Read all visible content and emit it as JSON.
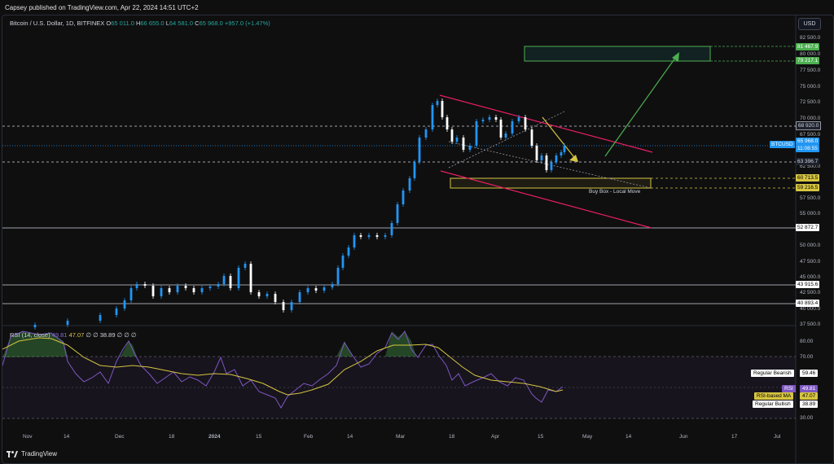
{
  "banner": {
    "text": "Capsey published on TradingView.com, Apr 22, 2024 14:51 UTC+2"
  },
  "header": {
    "symbol": "Bitcoin / U.S. Dollar, 1D, BITFINEX",
    "o_label": "O",
    "o_value": "65 011.0",
    "h_label": "H",
    "h_value": "66 655.0",
    "l_label": "L",
    "l_value": "64 581.0",
    "c_label": "C",
    "c_value": "65 968.0",
    "change": "+957.0 (+1.47%)",
    "currency": "USD"
  },
  "rsi_header": {
    "label": "RSI (14, close)",
    "rsi_value": "49.81",
    "ma_value": "47.07",
    "na1": "∅",
    "na2": "∅",
    "level": "38.89",
    "na3": "∅",
    "na4": "∅",
    "na5": "∅"
  },
  "price_axis": {
    "ticks": [
      "82 500.0",
      "80 000.0",
      "77 500.0",
      "75 000.0",
      "72 500.0",
      "70 000.0",
      "67 500.0",
      "62 500.0",
      "57 500.0",
      "55 000.0",
      "50 000.0",
      "47 500.0",
      "45 000.0",
      "42 500.0",
      "40 000.0",
      "37 500.0"
    ],
    "tags": {
      "t81467": "81 467.9",
      "t79217": "79 217.1",
      "t68920": "68 920.0",
      "btcusd": "BTCUSD",
      "price": "65 968.0",
      "countdown": "11:08:55",
      "t63396": "63 396.7",
      "t60713": "60 713.5",
      "t59216": "59 216.5",
      "t52872": "52 872.7",
      "t43915": "43 915.6",
      "t40893": "40 893.4"
    }
  },
  "rsi_axis": {
    "ticks": [
      "80.00",
      "70.00",
      "30.00"
    ],
    "tags": {
      "bearish_label": "Regular Bearish",
      "bearish_value": "59.46",
      "rsi_label": "RSI",
      "rsi_value": "49.81",
      "ma_label": "RSI-based MA",
      "ma_value": "47.07",
      "bullish_label": "Regular Bullish",
      "bullish_value": "38.89"
    }
  },
  "annotations": {
    "buy_box": "Buy Box - Local Move"
  },
  "time_axis": {
    "labels": [
      "Nov",
      "14",
      "Dec",
      "18",
      "2024",
      "15",
      "Feb",
      "14",
      "Mar",
      "18",
      "Apr",
      "15",
      "May",
      "14",
      "Jun",
      "17",
      "Jul"
    ]
  },
  "footer": {
    "brand": "TradingView"
  },
  "colors": {
    "up": "#2196f3",
    "down": "#ffffff",
    "green": "#26a69a",
    "rsi": "#7e57c2",
    "rsi_ma": "#d6c542",
    "pink": "#e91e63",
    "buy_box": "#d6c542"
  }
}
